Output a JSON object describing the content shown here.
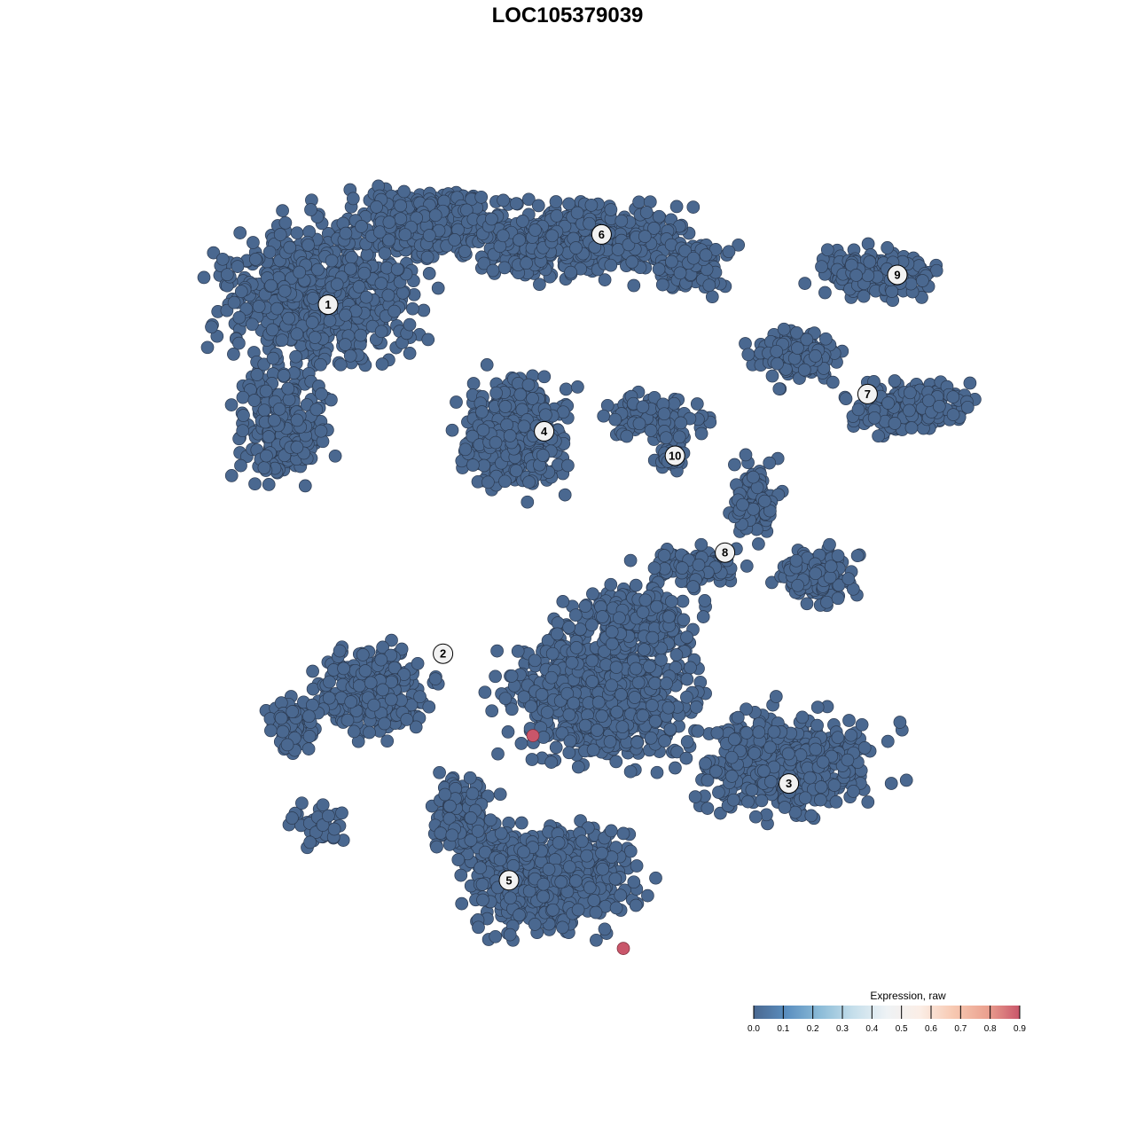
{
  "chart_data": {
    "type": "scatter",
    "title": "LOC105379039",
    "xlabel": "",
    "ylabel": "",
    "axes_visible": false,
    "grid": false,
    "point_color_default": "#4a6890",
    "clusters": [
      {
        "label": "1",
        "x": -22.5,
        "y": 24.7
      },
      {
        "label": "2",
        "x": -11.7,
        "y": -8.1
      },
      {
        "label": "3",
        "x": 20.8,
        "y": -20.3
      },
      {
        "label": "4",
        "x": -2.2,
        "y": 12.8
      },
      {
        "label": "5",
        "x": -5.5,
        "y": -29.4
      },
      {
        "label": "6",
        "x": 3.2,
        "y": 31.3
      },
      {
        "label": "7",
        "x": 28.2,
        "y": 16.3
      },
      {
        "label": "8",
        "x": 14.8,
        "y": 1.4
      },
      {
        "label": "9",
        "x": 31.0,
        "y": 27.5
      },
      {
        "label": "10",
        "x": 10.1,
        "y": 10.5
      }
    ],
    "baseline_expression": 0.0,
    "expressing_points": [
      {
        "x": -3.25,
        "y": -15.8,
        "value": 0.9
      },
      {
        "x": 5.25,
        "y": -35.8,
        "value": 0.9
      }
    ],
    "legend": {
      "title": "Expression, raw",
      "placement": "bottom-right",
      "ticks": [
        "0.0",
        "0.1",
        "0.2",
        "0.3",
        "0.4",
        "0.5",
        "0.6",
        "0.7",
        "0.8",
        "0.9"
      ],
      "range": [
        0,
        0.9
      ],
      "colors": [
        "#4a6890",
        "#5b8fc0",
        "#8cbcd8",
        "#c6dfeb",
        "#eef2f5",
        "#fbeee6",
        "#f7c9b2",
        "#eba290",
        "#c9566a"
      ]
    }
  }
}
